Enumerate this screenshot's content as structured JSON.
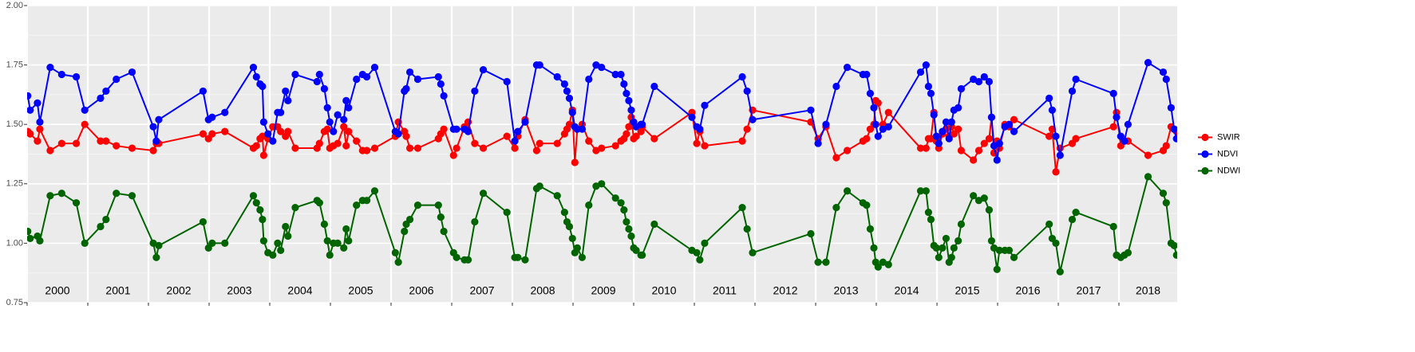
{
  "chart_data": {
    "type": "line",
    "x": [
      2000.01,
      2000.05,
      2000.17,
      2000.21,
      2000.38,
      2000.57,
      2000.81,
      2000.95,
      2001.21,
      2001.3,
      2001.47,
      2001.73,
      2002.08,
      2002.13,
      2002.17,
      2002.9,
      2002.99,
      2003.05,
      2003.26,
      2003.73,
      2003.78,
      2003.84,
      2003.88,
      2003.9,
      2003.97,
      2004.05,
      2004.13,
      2004.18,
      2004.26,
      2004.3,
      2004.42,
      2004.78,
      2004.82,
      2004.9,
      2004.95,
      2004.99,
      2005.05,
      2005.12,
      2005.22,
      2005.26,
      2005.3,
      2005.43,
      2005.53,
      2005.6,
      2005.73,
      2006.07,
      2006.12,
      2006.22,
      2006.25,
      2006.31,
      2006.44,
      2006.78,
      2006.82,
      2006.87,
      2007.03,
      2007.08,
      2007.21,
      2007.27,
      2007.38,
      2007.52,
      2007.91,
      2008.04,
      2008.09,
      2008.21,
      2008.4,
      2008.45,
      2008.74,
      2008.86,
      2008.9,
      2008.94,
      2008.99,
      2009.03,
      2009.07,
      2009.15,
      2009.26,
      2009.38,
      2009.47,
      2009.7,
      2009.79,
      2009.84,
      2009.88,
      2009.92,
      2009.96,
      2010.0,
      2010.04,
      2010.12,
      2010.14,
      2010.34,
      2010.96,
      2011.04,
      2011.09,
      2011.17,
      2011.79,
      2011.87,
      2011.96,
      2012.92,
      2013.04,
      2013.17,
      2013.34,
      2013.52,
      2013.78,
      2013.84,
      2013.9,
      2013.96,
      2013.99,
      2014.03,
      2014.11,
      2014.2,
      2014.73,
      2014.82,
      2014.86,
      2014.9,
      2014.95,
      2014.99,
      2015.03,
      2015.09,
      2015.15,
      2015.2,
      2015.24,
      2015.28,
      2015.35,
      2015.4,
      2015.6,
      2015.69,
      2015.78,
      2015.86,
      2015.9,
      2015.94,
      2015.99,
      2016.03,
      2016.12,
      2016.19,
      2016.27,
      2016.85,
      2016.9,
      2016.96,
      2017.03,
      2017.23,
      2017.29,
      2017.91,
      2017.96,
      2018.03,
      2018.09,
      2018.15,
      2018.48,
      2018.73,
      2018.78,
      2018.86,
      2018.91,
      2018.95
    ],
    "series": [
      {
        "name": "SWIR",
        "color": "#ff0000",
        "values": [
          1.47,
          1.46,
          1.43,
          1.48,
          1.39,
          1.42,
          1.42,
          1.5,
          1.43,
          1.43,
          1.41,
          1.4,
          1.39,
          1.42,
          1.42,
          1.46,
          1.44,
          1.46,
          1.47,
          1.4,
          1.41,
          1.44,
          1.45,
          1.37,
          1.44,
          1.49,
          1.49,
          1.47,
          1.45,
          1.47,
          1.4,
          1.4,
          1.42,
          1.47,
          1.48,
          1.4,
          1.41,
          1.42,
          1.49,
          1.41,
          1.47,
          1.43,
          1.39,
          1.39,
          1.4,
          1.45,
          1.51,
          1.47,
          1.45,
          1.4,
          1.4,
          1.44,
          1.46,
          1.48,
          1.37,
          1.4,
          1.49,
          1.51,
          1.42,
          1.4,
          1.45,
          1.4,
          1.45,
          1.52,
          1.39,
          1.42,
          1.42,
          1.46,
          1.48,
          1.5,
          1.56,
          1.34,
          1.48,
          1.5,
          1.43,
          1.39,
          1.4,
          1.41,
          1.43,
          1.44,
          1.46,
          1.49,
          1.53,
          1.44,
          1.45,
          1.47,
          1.49,
          1.44,
          1.55,
          1.42,
          1.47,
          1.41,
          1.43,
          1.48,
          1.56,
          1.51,
          1.44,
          1.49,
          1.36,
          1.39,
          1.43,
          1.44,
          1.48,
          1.5,
          1.6,
          1.59,
          1.5,
          1.55,
          1.4,
          1.4,
          1.44,
          1.44,
          1.55,
          1.43,
          1.4,
          1.46,
          1.48,
          1.45,
          1.49,
          1.46,
          1.48,
          1.39,
          1.35,
          1.39,
          1.42,
          1.44,
          1.53,
          1.38,
          1.43,
          1.4,
          1.5,
          1.49,
          1.52,
          1.45,
          1.48,
          1.3,
          1.4,
          1.42,
          1.44,
          1.49,
          1.55,
          1.41,
          1.43,
          1.43,
          1.37,
          1.39,
          1.41,
          1.49,
          1.48,
          1.47
        ]
      },
      {
        "name": "NDVI",
        "color": "#0000ff",
        "values": [
          1.62,
          1.56,
          1.59,
          1.51,
          1.74,
          1.71,
          1.7,
          1.56,
          1.61,
          1.64,
          1.69,
          1.72,
          1.49,
          1.43,
          1.52,
          1.64,
          1.52,
          1.53,
          1.55,
          1.74,
          1.7,
          1.67,
          1.66,
          1.51,
          1.46,
          1.43,
          1.55,
          1.55,
          1.64,
          1.6,
          1.71,
          1.68,
          1.71,
          1.65,
          1.57,
          1.51,
          1.47,
          1.54,
          1.52,
          1.6,
          1.57,
          1.69,
          1.71,
          1.7,
          1.74,
          1.47,
          1.46,
          1.64,
          1.65,
          1.72,
          1.69,
          1.7,
          1.67,
          1.62,
          1.48,
          1.48,
          1.48,
          1.47,
          1.64,
          1.73,
          1.68,
          1.43,
          1.47,
          1.51,
          1.75,
          1.75,
          1.7,
          1.67,
          1.64,
          1.61,
          1.55,
          1.49,
          1.48,
          1.48,
          1.69,
          1.75,
          1.74,
          1.71,
          1.71,
          1.67,
          1.63,
          1.6,
          1.56,
          1.51,
          1.49,
          1.5,
          1.5,
          1.66,
          1.53,
          1.49,
          1.48,
          1.58,
          1.7,
          1.64,
          1.52,
          1.56,
          1.42,
          1.5,
          1.66,
          1.74,
          1.71,
          1.71,
          1.63,
          1.57,
          1.5,
          1.45,
          1.48,
          1.49,
          1.72,
          1.75,
          1.66,
          1.63,
          1.54,
          1.45,
          1.42,
          1.47,
          1.51,
          1.44,
          1.51,
          1.56,
          1.57,
          1.65,
          1.69,
          1.68,
          1.7,
          1.68,
          1.53,
          1.41,
          1.35,
          1.42,
          1.49,
          1.5,
          1.47,
          1.61,
          1.56,
          1.45,
          1.37,
          1.64,
          1.69,
          1.63,
          1.53,
          1.45,
          1.43,
          1.5,
          1.76,
          1.72,
          1.69,
          1.57,
          1.48,
          1.44
        ]
      },
      {
        "name": "NDWI",
        "color": "#006400",
        "values": [
          1.05,
          1.02,
          1.03,
          1.01,
          1.2,
          1.21,
          1.17,
          1.0,
          1.07,
          1.1,
          1.21,
          1.2,
          1.0,
          0.94,
          0.99,
          1.09,
          0.98,
          1.0,
          1.0,
          1.2,
          1.17,
          1.14,
          1.1,
          1.01,
          0.96,
          0.95,
          1.0,
          0.97,
          1.07,
          1.03,
          1.15,
          1.18,
          1.17,
          1.08,
          1.01,
          0.95,
          1.0,
          1.0,
          0.98,
          1.06,
          1.01,
          1.16,
          1.18,
          1.18,
          1.22,
          0.96,
          0.92,
          1.05,
          1.08,
          1.1,
          1.16,
          1.16,
          1.11,
          1.05,
          0.96,
          0.94,
          0.93,
          0.93,
          1.09,
          1.21,
          1.13,
          0.94,
          0.94,
          0.93,
          1.23,
          1.24,
          1.2,
          1.13,
          1.09,
          1.07,
          1.02,
          0.96,
          0.98,
          0.94,
          1.16,
          1.24,
          1.25,
          1.19,
          1.17,
          1.14,
          1.09,
          1.06,
          1.03,
          0.98,
          0.97,
          0.95,
          0.95,
          1.08,
          0.97,
          0.96,
          0.93,
          1.0,
          1.15,
          1.06,
          0.96,
          1.04,
          0.92,
          0.92,
          1.15,
          1.22,
          1.17,
          1.16,
          1.06,
          0.98,
          0.92,
          0.9,
          0.92,
          0.91,
          1.22,
          1.22,
          1.13,
          1.1,
          0.99,
          0.98,
          0.94,
          0.98,
          1.02,
          0.92,
          0.94,
          0.98,
          1.01,
          1.08,
          1.2,
          1.18,
          1.19,
          1.14,
          1.01,
          0.98,
          0.89,
          0.97,
          0.97,
          0.97,
          0.94,
          1.08,
          1.02,
          1.0,
          0.88,
          1.1,
          1.13,
          1.07,
          0.95,
          0.94,
          0.95,
          0.96,
          1.28,
          1.21,
          1.17,
          1.0,
          0.99,
          0.95
        ]
      }
    ],
    "xlim": [
      2000,
      2018.96
    ],
    "ylim": [
      0.75,
      2
    ],
    "xticks": [
      2000,
      2001,
      2002,
      2003,
      2004,
      2005,
      2006,
      2007,
      2008,
      2009,
      2010,
      2011,
      2012,
      2013,
      2014,
      2015,
      2016,
      2017,
      2018
    ],
    "yticks": [
      0.75,
      {
        "value": 1,
        "label": "1.00"
      },
      1.25,
      {
        "value": 1.5,
        "label": "1.50"
      },
      1.75,
      {
        "value": 2,
        "label": "2.00"
      }
    ],
    "grid": true,
    "legend": "right"
  }
}
